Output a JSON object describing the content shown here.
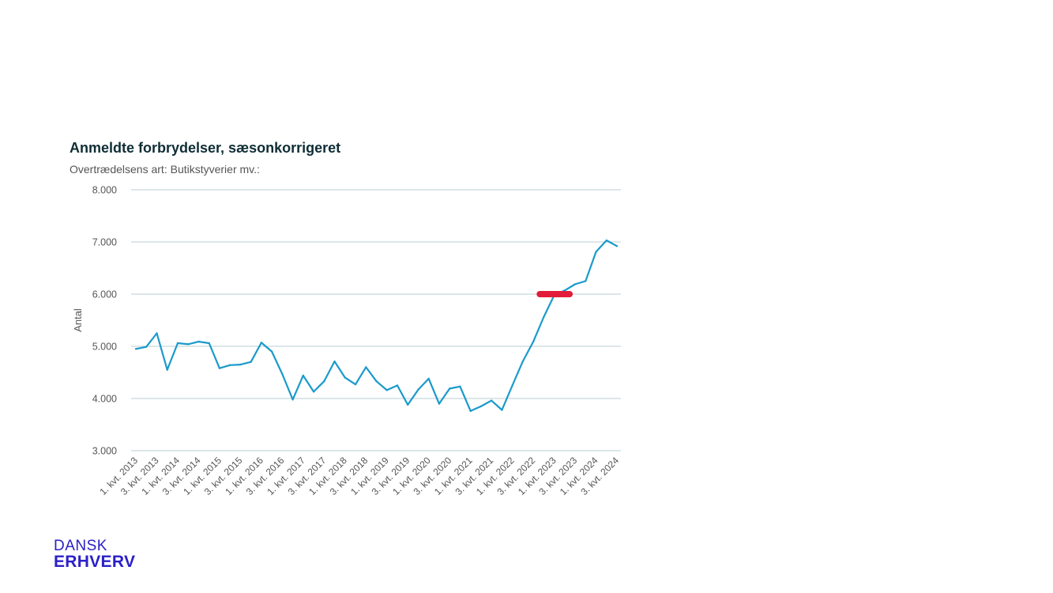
{
  "logo": {
    "line1": "DANSK",
    "line2": "ERHVERV"
  },
  "chart_data": {
    "type": "line",
    "title": "Anmeldte forbrydelser, sæsonkorrigeret",
    "subtitle": "Overtrædelsens art: Butikstyverier mv.:",
    "ylabel": "Antal",
    "xlabel": "",
    "ylim": [
      3000,
      8000
    ],
    "yticks": [
      "3.000",
      "4.000",
      "5.000",
      "6.000",
      "7.000",
      "8.000"
    ],
    "yticks_values": [
      3000,
      4000,
      5000,
      6000,
      7000,
      8000
    ],
    "grid": "horizontal",
    "line_color": "#1a9acb",
    "marker_color": "#e31b3a",
    "xtick_labels": [
      "1. kvt. 2013",
      "3. kvt. 2013",
      "1. kvt. 2014",
      "3. kvt. 2014",
      "1. kvt. 2015",
      "3. kvt. 2015",
      "1. kvt. 2016",
      "3. kvt. 2016",
      "1. kvt. 2017",
      "3. kvt. 2017",
      "1. kvt. 2018",
      "3. kvt. 2018",
      "1. kvt. 2019",
      "3. kvt. 2019",
      "1. kvt. 2020",
      "3. kvt. 2020",
      "1. kvt. 2021",
      "3. kvt. 2021",
      "1. kvt. 2022",
      "3. kvt. 2022",
      "1. kvt. 2023",
      "3. kvt. 2023",
      "1. kvt. 2024",
      "3. kvt. 2024"
    ],
    "series": [
      {
        "values": [
          4950,
          4990,
          5250,
          4550,
          5060,
          5040,
          5090,
          5060,
          4580,
          4640,
          4650,
          4700,
          5070,
          4900,
          4470,
          3980,
          4440,
          4130,
          4330,
          4710,
          4400,
          4270,
          4600,
          4330,
          4160,
          4250,
          3880,
          4170,
          4380,
          3900,
          4190,
          4230,
          3760,
          3850,
          3960,
          3780,
          4250,
          4710,
          5090,
          5560,
          5980,
          6070,
          6190,
          6250,
          6810,
          7030,
          6920
        ]
      }
    ],
    "highlight": {
      "label": "",
      "y": 6000,
      "from_index": 39,
      "to_index": 42
    }
  }
}
